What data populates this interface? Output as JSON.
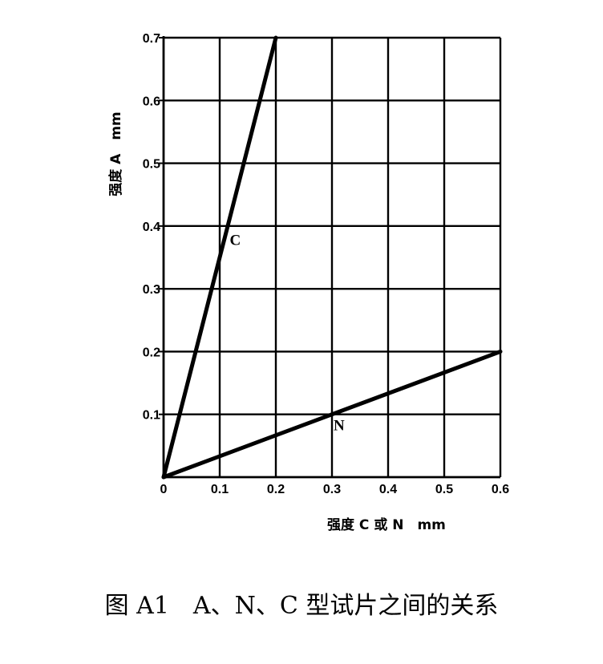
{
  "chart_data": {
    "type": "line",
    "xlabel": "强度 C 或 N　mm",
    "ylabel": "强度 A　mm",
    "xlim": [
      0,
      0.6
    ],
    "ylim": [
      0,
      0.7
    ],
    "x_ticks": [
      "0",
      "0.1",
      "0.2",
      "0.3",
      "0.4",
      "0.5",
      "0.6"
    ],
    "y_ticks": [
      "0.1",
      "0.2",
      "0.3",
      "0.4",
      "0.5",
      "0.6",
      "0.7"
    ],
    "x_tick_values": [
      0,
      0.1,
      0.2,
      0.3,
      0.4,
      0.5,
      0.6
    ],
    "y_tick_values": [
      0.1,
      0.2,
      0.3,
      0.4,
      0.5,
      0.6,
      0.7
    ],
    "grid": true,
    "series": [
      {
        "name": "C",
        "x": [
          0,
          0.2
        ],
        "y": [
          0,
          0.7
        ],
        "label_at": [
          0.115,
          0.38
        ]
      },
      {
        "name": "N",
        "x": [
          0,
          0.6
        ],
        "y": [
          0,
          0.2
        ],
        "label_at": [
          0.3,
          0.085
        ]
      }
    ]
  },
  "caption": "图 A1　A、N、C 型试片之间的关系"
}
